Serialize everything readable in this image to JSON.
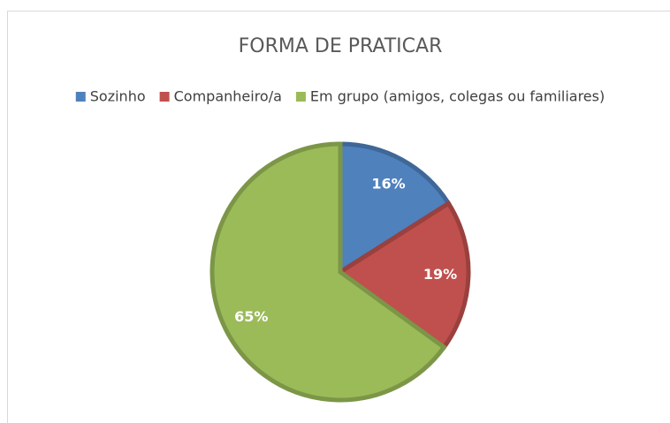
{
  "chart_data": {
    "type": "pie",
    "title": "FORMA DE PRATICAR",
    "categories": [
      "Sozinho",
      "Companheiro/a",
      "Em grupo (amigos, colegas ou familiares)"
    ],
    "values": [
      16,
      19,
      65
    ],
    "value_labels": [
      "16%",
      "19%",
      "65%"
    ],
    "colors": [
      "#4f81bd",
      "#c0504d",
      "#9bbb59"
    ],
    "legend": "top"
  }
}
